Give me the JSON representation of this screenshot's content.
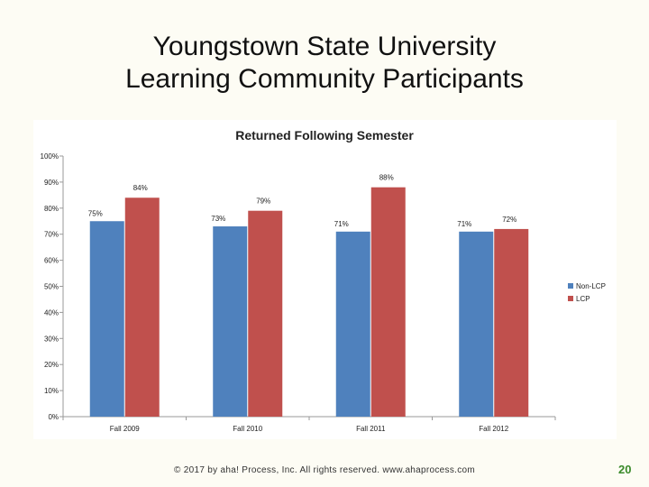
{
  "slide": {
    "title_line1": "Youngstown State University",
    "title_line2": "Learning Community Participants",
    "footer": "© 2017 by aha! Process, Inc. All rights reserved. www.ahaprocess.com",
    "page_number": "20"
  },
  "chart_data": {
    "type": "bar",
    "title": "Returned Following Semester",
    "categories": [
      "Fall 2009",
      "Fall 2010",
      "Fall 2011",
      "Fall 2012"
    ],
    "series": [
      {
        "name": "Non-LCP",
        "values": [
          75,
          73,
          71,
          71
        ],
        "labels": [
          "75%",
          "73%",
          "71%",
          "71%"
        ],
        "color": "#4f81bd"
      },
      {
        "name": "LCP",
        "values": [
          84,
          79,
          88,
          72
        ],
        "labels": [
          "84%",
          "79%",
          "88%",
          "72%"
        ],
        "color": "#c0504d"
      }
    ],
    "y_ticks": [
      "0%",
      "10%",
      "20%",
      "30%",
      "40%",
      "50%",
      "60%",
      "70%",
      "80%",
      "90%",
      "100%"
    ],
    "ylim": [
      0,
      100
    ],
    "grid": false,
    "legend_position": "right"
  }
}
